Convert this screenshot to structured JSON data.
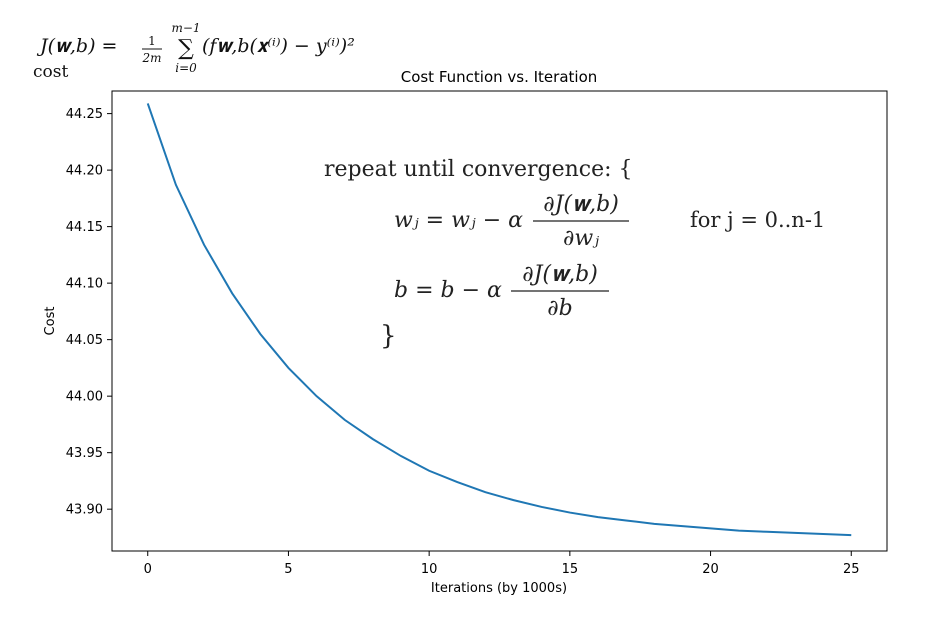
{
  "formula_header": {
    "cost_lhs": "J(𝐰,b) =",
    "frac_num": "1",
    "frac_den": "2m",
    "sum_top": "m−1",
    "sum_sym": "∑",
    "sum_bottom": "i=0",
    "cost_rhs": "(f𝐰,b(𝐱⁽ⁱ⁾) − y⁽ⁱ⁾)²",
    "cost_label": "cost"
  },
  "annotation": {
    "repeat_line": "repeat until convergence: {",
    "w_lhs": "wⱼ = wⱼ − α",
    "w_num": "∂J(𝐰,b)",
    "w_den": "∂wⱼ",
    "w_for": "for j = 0..n-1",
    "b_lhs": "b   = b − α",
    "b_num": "∂J(𝐰,b)",
    "b_den": "∂b",
    "close_brace": "}"
  },
  "chart_data": {
    "type": "line",
    "title": "Cost Function vs. Iteration",
    "xlabel": "Iterations (by 1000s)",
    "ylabel": "Cost",
    "xlim": [
      -1.27,
      26.27
    ],
    "ylim": [
      43.863,
      44.27
    ],
    "xticks": [
      0,
      5,
      10,
      15,
      20,
      25
    ],
    "yticks": [
      43.9,
      43.95,
      44.0,
      44.05,
      44.1,
      44.15,
      44.2,
      44.25
    ],
    "ytick_labels": [
      "43.90",
      "43.95",
      "44.00",
      "44.05",
      "44.10",
      "44.15",
      "44.20",
      "44.25"
    ],
    "grid": false,
    "line_color": "#1f77b4",
    "x": [
      0,
      1,
      2,
      3,
      4,
      5,
      6,
      7,
      8,
      9,
      10,
      11,
      12,
      13,
      14,
      15,
      16,
      17,
      18,
      19,
      20,
      21,
      22,
      23,
      24,
      25
    ],
    "series": [
      {
        "values": [
          44.259,
          44.187,
          44.134,
          44.091,
          44.055,
          44.025,
          44.0,
          43.979,
          43.962,
          43.947,
          43.934,
          43.924,
          43.915,
          43.908,
          43.902,
          43.897,
          43.893,
          43.89,
          43.887,
          43.885,
          43.883,
          43.881,
          43.88,
          43.879,
          43.878,
          43.877
        ]
      }
    ]
  }
}
